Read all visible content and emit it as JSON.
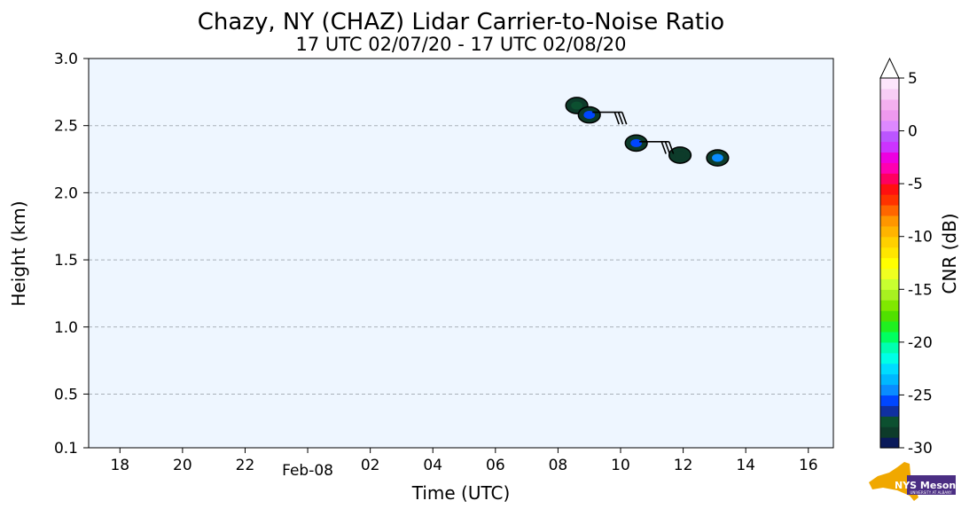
{
  "chart_data": {
    "type": "heatmap",
    "title": "Chazy, NY (CHAZ) Lidar Carrier-to-Noise Ratio",
    "subtitle": "17 UTC 02/07/20 - 17 UTC 02/08/20",
    "xlabel": "Time (UTC)",
    "ylabel": "Height (km)",
    "xlim": [
      17,
      40.8
    ],
    "ylim": [
      0.1,
      3.0
    ],
    "x_ticks": [
      {
        "value": 18,
        "label": "18"
      },
      {
        "value": 20,
        "label": "20"
      },
      {
        "value": 22,
        "label": "22"
      },
      {
        "value": 26,
        "label": "02"
      },
      {
        "value": 28,
        "label": "04"
      },
      {
        "value": 30,
        "label": "06"
      },
      {
        "value": 32,
        "label": "08"
      },
      {
        "value": 34,
        "label": "10"
      },
      {
        "value": 36,
        "label": "12"
      },
      {
        "value": 38,
        "label": "14"
      },
      {
        "value": 40,
        "label": "16"
      }
    ],
    "date_tick": {
      "value": 24,
      "label": "Feb-08"
    },
    "y_ticks": [
      {
        "value": 0.1,
        "label": "0.1"
      },
      {
        "value": 0.5,
        "label": "0.5"
      },
      {
        "value": 1.0,
        "label": "1.0"
      },
      {
        "value": 1.5,
        "label": "1.5"
      },
      {
        "value": 2.0,
        "label": "2.0"
      },
      {
        "value": 2.5,
        "label": "2.5"
      },
      {
        "value": 3.0,
        "label": "3.0"
      }
    ],
    "grid": "horizontal dashed",
    "colorbar": {
      "label": "CNR (dB)",
      "min": -30,
      "max": 5,
      "extend": "max",
      "ticks": [
        {
          "value": 5,
          "label": "5"
        },
        {
          "value": 0,
          "label": "0"
        },
        {
          "value": -5,
          "label": "-5"
        },
        {
          "value": -10,
          "label": "-10"
        },
        {
          "value": -15,
          "label": "-15"
        },
        {
          "value": -20,
          "label": "-20"
        },
        {
          "value": -25,
          "label": "-25"
        },
        {
          "value": -30,
          "label": "-30"
        }
      ],
      "colors": [
        "#0a1a5a",
        "#0d3b2a",
        "#0c5030",
        "#1030a0",
        "#0046ff",
        "#0a8cff",
        "#00b8ff",
        "#00dcff",
        "#00ffe6",
        "#00ffb0",
        "#00ff60",
        "#20f020",
        "#50e000",
        "#80e800",
        "#a8f020",
        "#c8ff30",
        "#f0ff20",
        "#ffff00",
        "#ffe600",
        "#ffd000",
        "#ffb400",
        "#ff9600",
        "#ff6600",
        "#ff3300",
        "#ff1010",
        "#ff0060",
        "#ff00b0",
        "#ee00e0",
        "#cc33ff",
        "#bb55ff",
        "#dd88ff",
        "#ee99ee",
        "#f3b0ef",
        "#f8cdf5",
        "#fde6fc"
      ]
    },
    "clusters": [
      {
        "x": 32.6,
        "y": 2.65,
        "cnr": -28
      },
      {
        "x": 33.0,
        "y": 2.58,
        "cnr": -26
      },
      {
        "x": 34.5,
        "y": 2.37,
        "cnr": -26
      },
      {
        "x": 35.9,
        "y": 2.28,
        "cnr": -29
      },
      {
        "x": 37.1,
        "y": 2.26,
        "cnr": -25
      }
    ],
    "wind_barbs": [
      {
        "x": 33.1,
        "y": 2.6,
        "barbs": 3
      },
      {
        "x": 34.6,
        "y": 2.38,
        "barbs": 3
      }
    ],
    "background_color": "#eef6ff"
  },
  "logo": {
    "text": "NYS Mesonet",
    "subtext": "UNIVERSITY AT ALBANY"
  }
}
